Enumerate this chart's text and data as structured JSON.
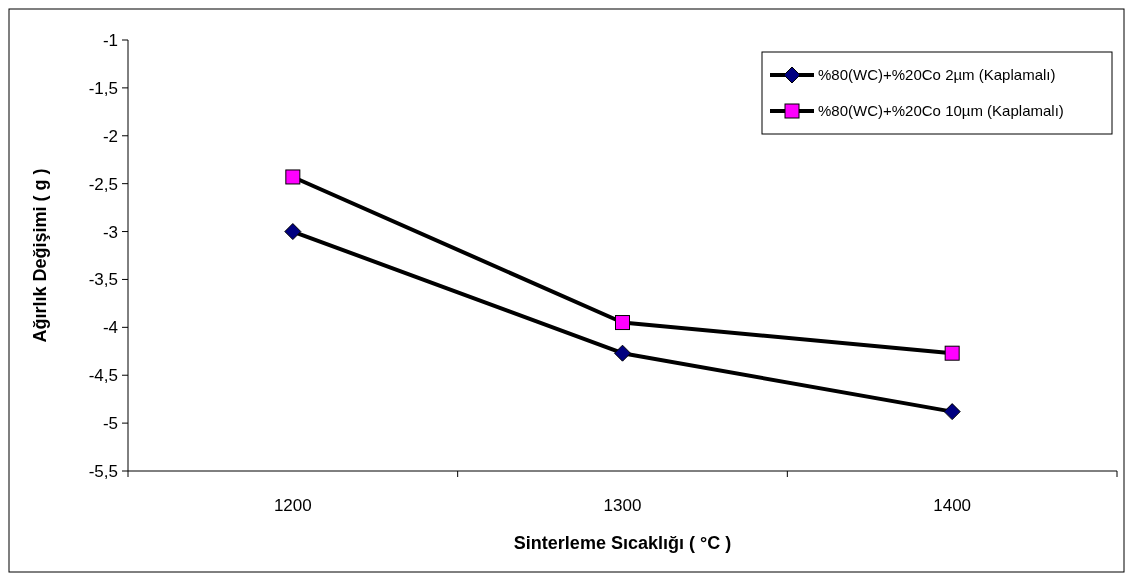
{
  "chart_data": {
    "type": "line",
    "xlabel": "Sinterleme Sıcaklığı ( °C )",
    "ylabel": "Ağırlık Değişimi ( g )",
    "categories": [
      "1200",
      "1300",
      "1400"
    ],
    "series": [
      {
        "name": "%80(WC)+%20Co 2µm (Kaplamalı)",
        "color": "#000080",
        "marker": "diamond",
        "values": [
          -3.0,
          -4.27,
          -4.88
        ]
      },
      {
        "name": "%80(WC)+%20Co 10µm (Kaplamalı)",
        "color": "#ff00ff",
        "marker": "square",
        "values": [
          -2.43,
          -3.95,
          -4.27
        ]
      }
    ],
    "ylim": [
      -5.5,
      -1
    ],
    "yticks": [
      -1,
      {
        "value": -1.5,
        "label": "-1,5"
      },
      -2,
      {
        "value": -2.5,
        "label": "-2,5"
      },
      -3,
      {
        "value": -3.5,
        "label": "-3,5"
      },
      -4,
      {
        "value": -4.5,
        "label": "-4,5"
      },
      -5,
      {
        "value": -5.5,
        "label": "-5,5"
      }
    ],
    "grid": false,
    "legend": "top right",
    "line_style": "solid"
  }
}
